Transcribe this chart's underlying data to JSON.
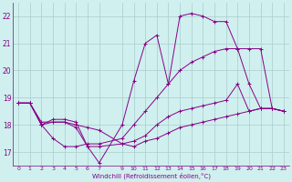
{
  "xlabel": "Windchill (Refroidissement éolien,°C)",
  "xlim": [
    -0.5,
    23.5
  ],
  "ylim": [
    16.5,
    22.5
  ],
  "yticks": [
    17,
    18,
    19,
    20,
    21,
    22
  ],
  "xticks": [
    0,
    1,
    2,
    3,
    4,
    5,
    6,
    7,
    9,
    10,
    11,
    12,
    13,
    14,
    15,
    16,
    17,
    18,
    19,
    20,
    21,
    22,
    23
  ],
  "bg_color": "#cff0ee",
  "line_color": "#880088",
  "grid_color": "#aacccc",
  "lines": [
    {
      "x": [
        0,
        1,
        2,
        3,
        4,
        5,
        6,
        7,
        9,
        10,
        11,
        12,
        13,
        14,
        15,
        16,
        17,
        18,
        19,
        20,
        21,
        22,
        23
      ],
      "y": [
        18.8,
        18.8,
        18.0,
        18.2,
        18.2,
        18.1,
        17.2,
        16.6,
        18.0,
        19.6,
        21.0,
        21.3,
        19.5,
        22.0,
        22.1,
        22.0,
        21.8,
        21.8,
        20.8,
        19.5,
        18.6,
        18.6,
        18.5
      ]
    },
    {
      "x": [
        0,
        1,
        2,
        3,
        4,
        5,
        6,
        7,
        9,
        10,
        11,
        12,
        13,
        14,
        15,
        16,
        17,
        18,
        19,
        20,
        21,
        22,
        23
      ],
      "y": [
        18.8,
        18.8,
        18.0,
        17.5,
        17.2,
        17.2,
        17.3,
        17.3,
        17.5,
        18.0,
        18.5,
        19.0,
        19.5,
        20.0,
        20.3,
        20.5,
        20.7,
        20.8,
        20.8,
        20.8,
        20.8,
        18.6,
        18.5
      ]
    },
    {
      "x": [
        0,
        1,
        2,
        3,
        4,
        5,
        6,
        7,
        9,
        10,
        11,
        12,
        13,
        14,
        15,
        16,
        17,
        18,
        19,
        20,
        21,
        22,
        23
      ],
      "y": [
        18.8,
        18.8,
        18.1,
        18.1,
        18.1,
        17.9,
        17.2,
        17.2,
        17.3,
        17.4,
        17.6,
        18.0,
        18.3,
        18.5,
        18.6,
        18.7,
        18.8,
        18.9,
        19.5,
        18.5,
        18.6,
        18.6,
        18.5
      ]
    },
    {
      "x": [
        0,
        1,
        2,
        3,
        4,
        5,
        6,
        7,
        9,
        10,
        11,
        12,
        13,
        14,
        15,
        16,
        17,
        18,
        19,
        20,
        21,
        22,
        23
      ],
      "y": [
        18.8,
        18.8,
        18.0,
        18.1,
        18.1,
        18.0,
        17.9,
        17.8,
        17.3,
        17.2,
        17.4,
        17.5,
        17.7,
        17.9,
        18.0,
        18.1,
        18.2,
        18.3,
        18.4,
        18.5,
        18.6,
        18.6,
        18.5
      ]
    }
  ]
}
